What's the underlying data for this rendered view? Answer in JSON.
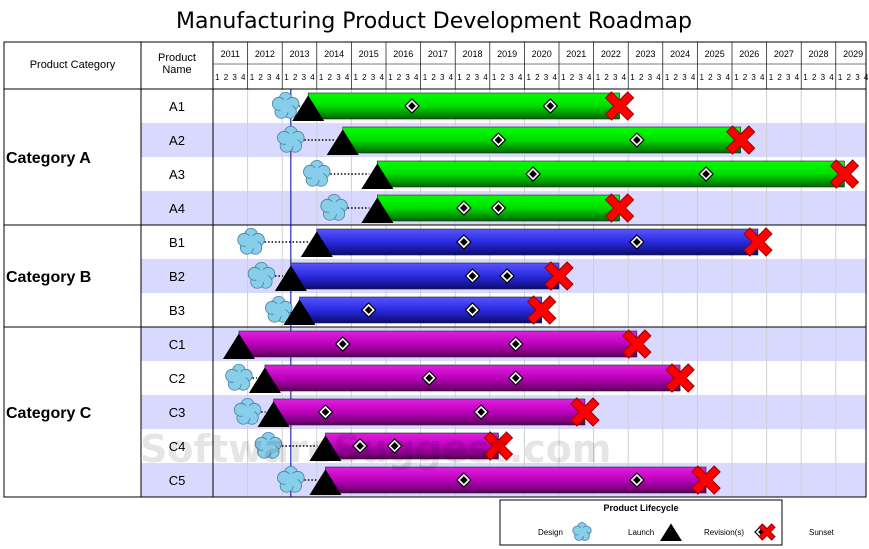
{
  "chart_data": {
    "type": "gantt",
    "title": "Manufacturing Product Development Roadmap",
    "headers": {
      "category": "Product Category",
      "product": "Product\nName"
    },
    "years": [
      "2011",
      "2012",
      "2013",
      "2014",
      "2015",
      "2016",
      "2017",
      "2018",
      "2019",
      "2020",
      "2021",
      "2022",
      "2023",
      "2024",
      "2025",
      "2026",
      "2027",
      "2028",
      "2029"
    ],
    "quarters": [
      "1",
      "2",
      "3",
      "4"
    ],
    "today_marker": 2013.25,
    "categories": [
      {
        "name": "Category A",
        "color": "#00cc00",
        "products": [
          {
            "name": "A1",
            "design": 2013.1,
            "launch": 2013.75,
            "revisions": [
              2016.75,
              2020.75
            ],
            "sunset": 2022.75
          },
          {
            "name": "A2",
            "design": 2013.25,
            "launch": 2014.75,
            "revisions": [
              2019.25,
              2023.25
            ],
            "sunset": 2026.25
          },
          {
            "name": "A3",
            "design": 2014.0,
            "launch": 2015.75,
            "revisions": [
              2020.25,
              2025.25
            ],
            "sunset": 2029.25
          },
          {
            "name": "A4",
            "design": 2014.5,
            "launch": 2015.75,
            "revisions": [
              2018.25,
              2019.25
            ],
            "sunset": 2022.75
          }
        ]
      },
      {
        "name": "Category B",
        "color": "#2a2ae0",
        "products": [
          {
            "name": "B1",
            "design": 2012.1,
            "launch": 2014.0,
            "revisions": [
              2018.25,
              2023.25
            ],
            "sunset": 2026.75
          },
          {
            "name": "B2",
            "design": 2012.4,
            "launch": 2013.25,
            "revisions": [
              2018.5,
              2019.5
            ],
            "sunset": 2021.0
          },
          {
            "name": "B3",
            "design": 2012.9,
            "launch": 2013.5,
            "revisions": [
              2015.5,
              2018.5
            ],
            "sunset": 2020.5
          }
        ]
      },
      {
        "name": "Category C",
        "color": "#bb00bb",
        "products": [
          {
            "name": "C1",
            "design": null,
            "launch": 2011.75,
            "revisions": [
              2014.75,
              2019.75
            ],
            "sunset": 2023.25
          },
          {
            "name": "C2",
            "design": 2011.75,
            "launch": 2012.5,
            "revisions": [
              2017.25,
              2019.75
            ],
            "sunset": 2024.5
          },
          {
            "name": "C3",
            "design": 2012.0,
            "launch": 2012.75,
            "revisions": [
              2014.25,
              2018.75
            ],
            "sunset": 2021.75
          },
          {
            "name": "C4",
            "design": 2012.6,
            "launch": 2014.25,
            "revisions": [
              2015.25,
              2016.25
            ],
            "sunset": 2019.25
          },
          {
            "name": "C5",
            "design": 2013.25,
            "launch": 2014.25,
            "revisions": [
              2018.25,
              2023.25
            ],
            "sunset": 2025.25
          }
        ]
      }
    ],
    "legend": {
      "title": "Product Lifecycle",
      "items": [
        "Design",
        "Launch",
        "Revision(s)",
        "Sunset"
      ]
    },
    "xlim": [
      2011,
      2030
    ]
  },
  "watermark": "SoftwareSuggest.com"
}
